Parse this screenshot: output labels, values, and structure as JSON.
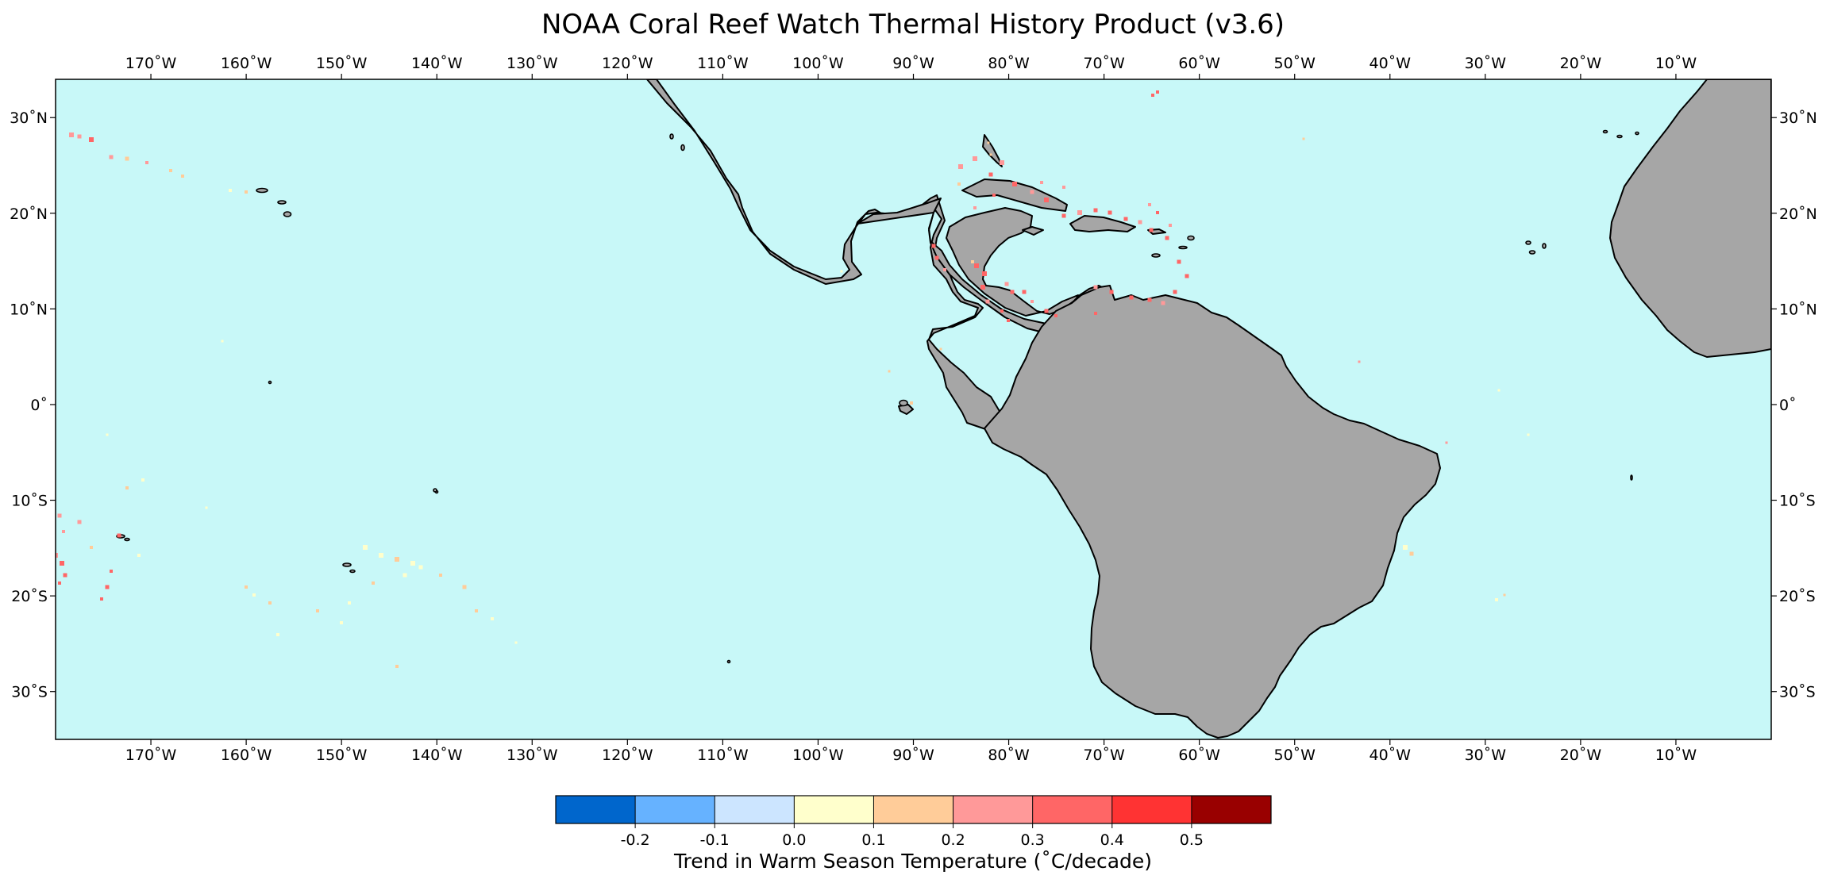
{
  "map": {
    "title": "NOAA Coral Reef Watch Thermal History Product (v3.6)",
    "extent": {
      "lon_min": -180,
      "lon_max": 0,
      "lat_min": -35,
      "lat_max": 34
    },
    "colors": {
      "ocean": "#c8f8f8",
      "land": "#a6a6a6",
      "coast": "#000000"
    },
    "lon_ticks": [
      "170˚W",
      "160˚W",
      "150˚W",
      "140˚W",
      "130˚W",
      "120˚W",
      "110˚W",
      "100˚W",
      "90˚W",
      "80˚W",
      "70˚W",
      "60˚W",
      "50˚W",
      "40˚W",
      "30˚W",
      "20˚W",
      "10˚W"
    ],
    "lat_ticks": [
      "30˚N",
      "20˚N",
      "10˚N",
      "0˚",
      "10˚S",
      "20˚S",
      "30˚S"
    ]
  },
  "colorbar": {
    "label": "Trend in Warm Season Temperature (˚C/decade)",
    "colors": [
      "#0066cc",
      "#66b2ff",
      "#cce5ff",
      "#ffffcc",
      "#ffcc99",
      "#ff9999",
      "#ff6666",
      "#ff3333",
      "#990000"
    ],
    "ticks": [
      "-0.2",
      "-0.1",
      "0.0",
      "0.1",
      "0.2",
      "0.3",
      "0.4",
      "0.5"
    ]
  }
}
